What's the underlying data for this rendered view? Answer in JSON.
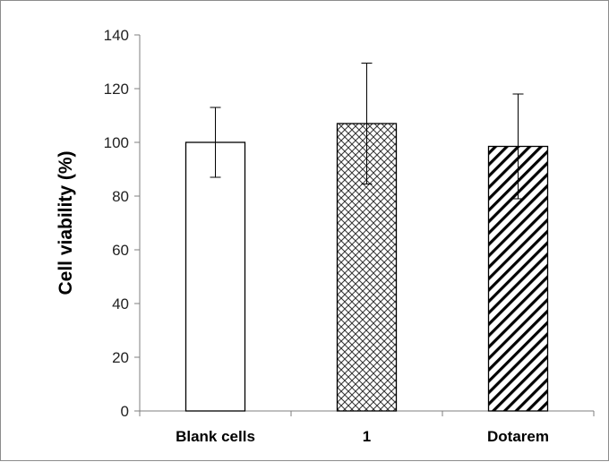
{
  "chart_data": {
    "type": "bar",
    "title": "",
    "xlabel": "",
    "ylabel": "Cell viability (%)",
    "ylim": [
      0,
      140
    ],
    "yticks": [
      0,
      20,
      40,
      60,
      80,
      100,
      120,
      140
    ],
    "categories": [
      "Blank cells",
      "1",
      "Dotarem"
    ],
    "values": [
      100,
      107,
      98.5
    ],
    "error_bars": [
      13,
      22.5,
      19.5
    ],
    "bar_fills": [
      "none",
      "crosshatch",
      "diagonal-stripes"
    ],
    "grid": false,
    "legend": false
  }
}
